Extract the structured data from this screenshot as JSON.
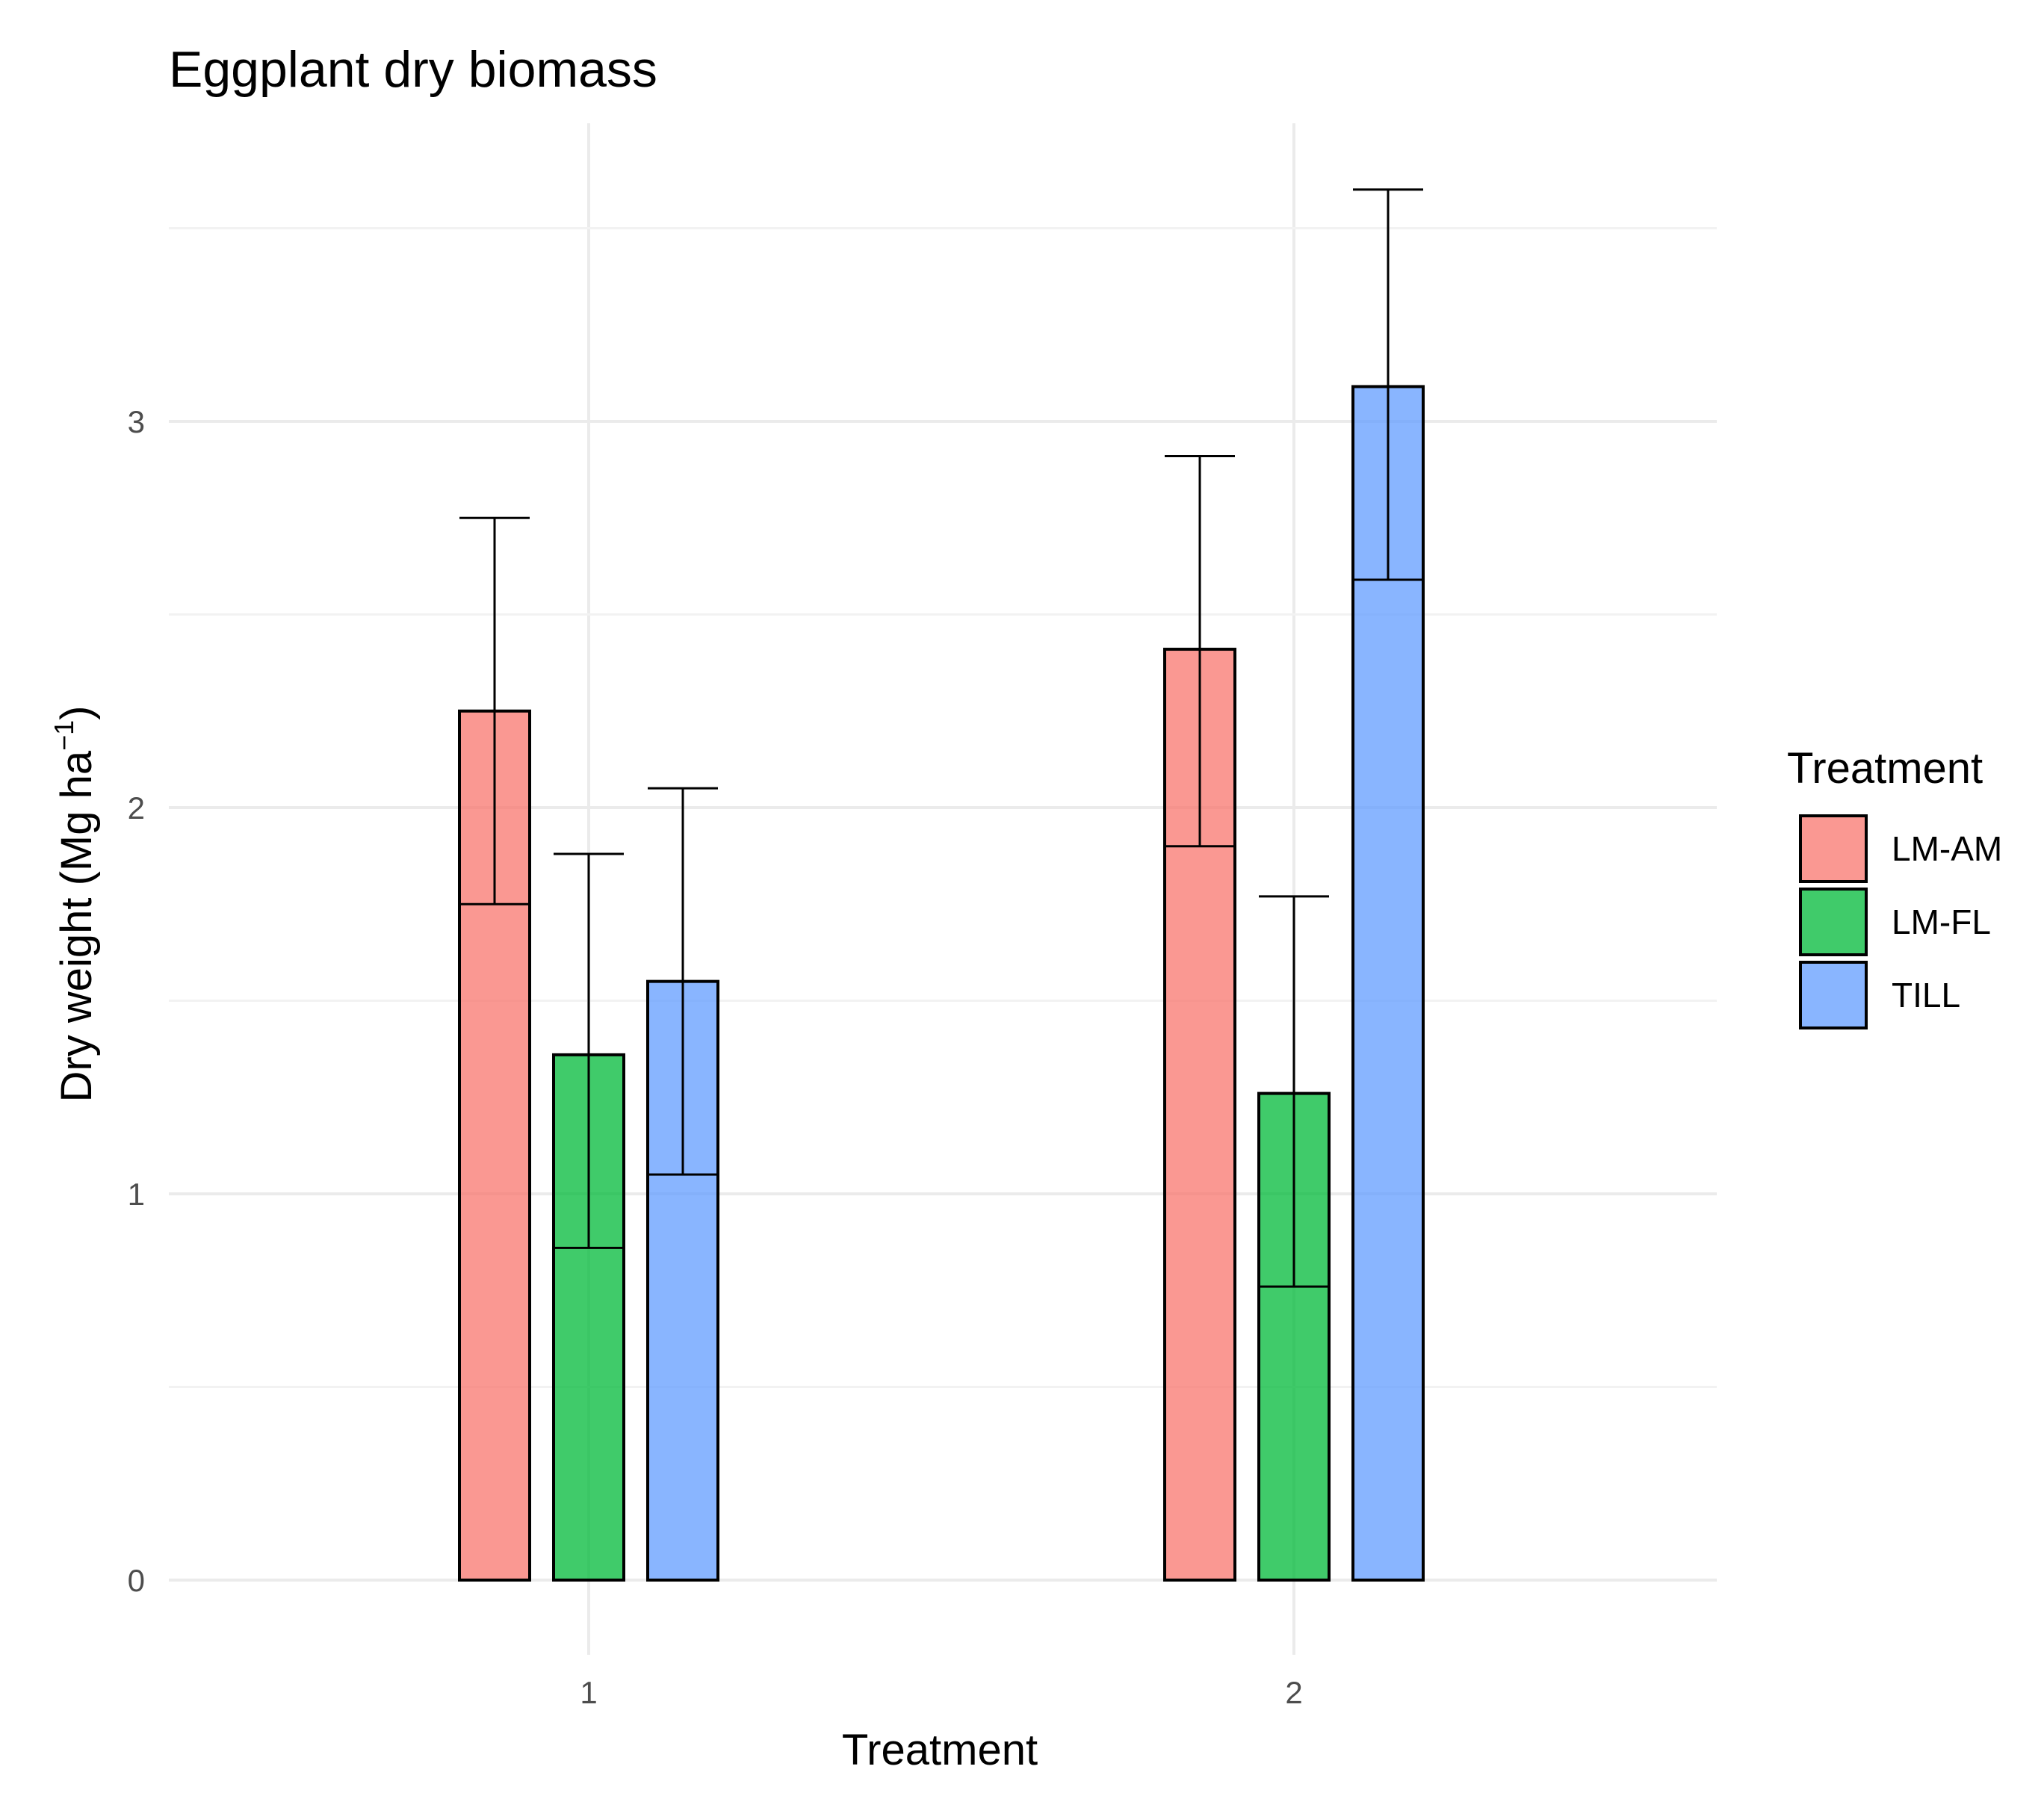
{
  "chart_data": {
    "type": "bar",
    "title": "Eggplant dry biomass",
    "xlabel": "Treatment",
    "ylabel_main": "Dry weight (Mg ha",
    "ylabel_sup": "−1",
    "ylabel_end": ")",
    "categories": [
      "1",
      "2"
    ],
    "ylim": [
      0,
      3.7
    ],
    "yticks": [
      0,
      1,
      2,
      3
    ],
    "grid": true,
    "legend": {
      "title": "Treatment",
      "position": "right"
    },
    "series": [
      {
        "name": "LM-AM",
        "color": "#F8766D",
        "values": [
          2.25,
          2.41
        ],
        "error_low": [
          1.75,
          1.9
        ],
        "error_high": [
          2.75,
          2.91
        ]
      },
      {
        "name": "LM-FL",
        "color": "#00BA38",
        "values": [
          1.36,
          1.26
        ],
        "error_low": [
          0.86,
          0.76
        ],
        "error_high": [
          1.88,
          1.77
        ]
      },
      {
        "name": "TILL",
        "color": "#619CFF",
        "values": [
          1.55,
          3.09
        ],
        "error_low": [
          1.05,
          2.59
        ],
        "error_high": [
          2.05,
          3.6
        ]
      }
    ]
  }
}
